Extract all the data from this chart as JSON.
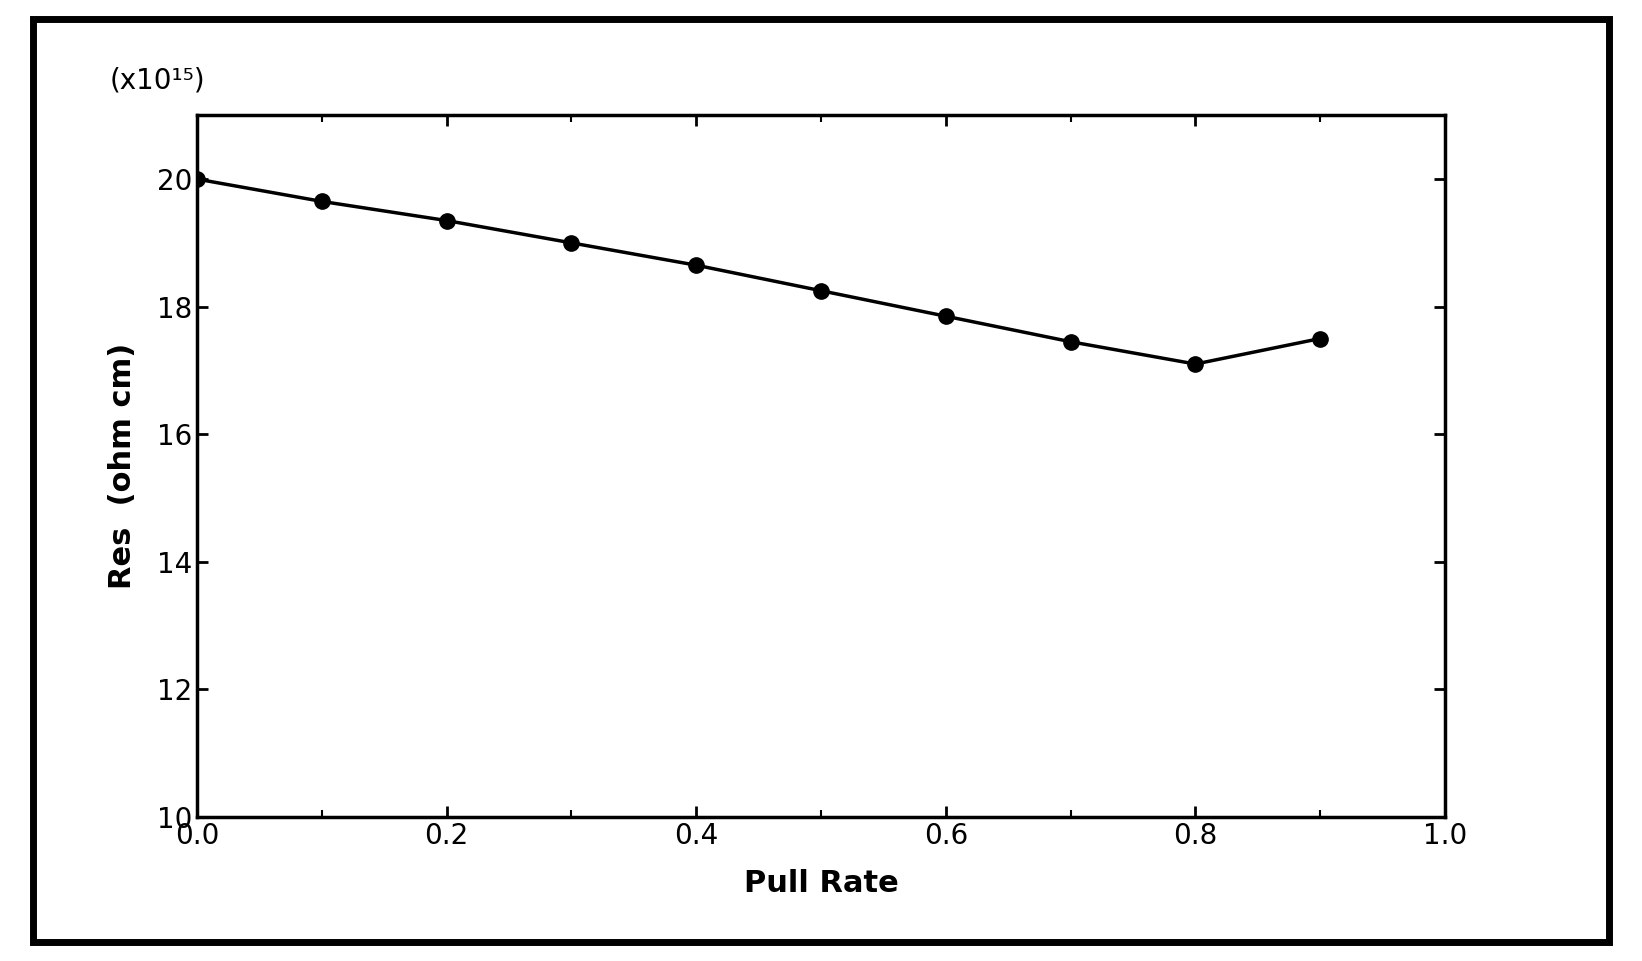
{
  "x": [
    0.0,
    0.1,
    0.2,
    0.3,
    0.4,
    0.5,
    0.6,
    0.7,
    0.8,
    0.9
  ],
  "y": [
    20.0,
    19.65,
    19.35,
    19.0,
    18.65,
    18.25,
    17.85,
    17.45,
    17.1,
    17.5
  ],
  "xlabel": "Pull Rate",
  "ylabel": "Res  (ohm cm)",
  "multiplier_label": "(x10¹⁵)",
  "xlim": [
    0,
    1
  ],
  "ylim": [
    10,
    21
  ],
  "yticks": [
    10,
    12,
    14,
    16,
    18,
    20
  ],
  "xticks": [
    0,
    0.2,
    0.4,
    0.6,
    0.8,
    1
  ],
  "line_color": "#000000",
  "marker_color": "#000000",
  "background_color": "#ffffff",
  "label_fontsize": 22,
  "tick_fontsize": 20,
  "multiplier_fontsize": 20,
  "marker_size": 11,
  "line_width": 2.5,
  "outer_border_lw": 4.0,
  "spine_lw": 2.5
}
